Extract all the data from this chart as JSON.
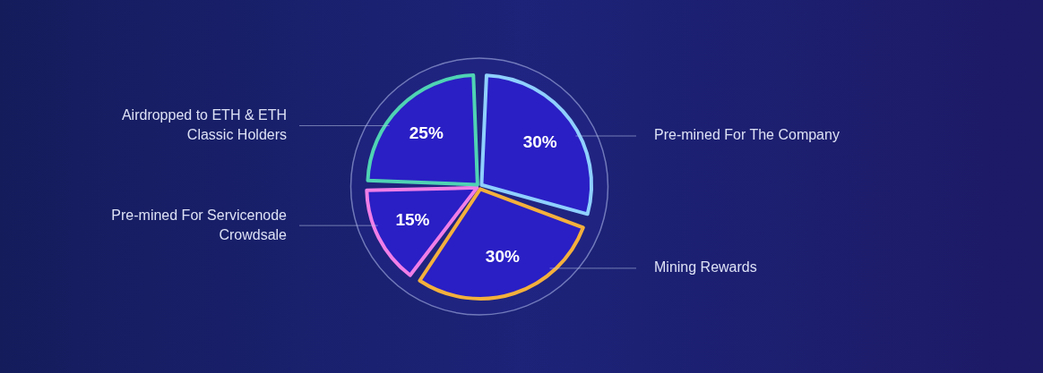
{
  "chart_data": {
    "type": "pie",
    "categories": [
      "Pre-mined For The Company",
      "Mining Rewards",
      "Pre-mined For Servicenode Crowdsale",
      "Airdropped to ETH & ETH Classic Holders"
    ],
    "values": [
      30,
      30,
      15,
      25
    ],
    "colors": [
      "#8fd0ff",
      "#f4b03c",
      "#f07ee8",
      "#4fd3b4"
    ],
    "value_labels": [
      "30%",
      "30%",
      "15%",
      "25%"
    ],
    "legend": false
  }
}
